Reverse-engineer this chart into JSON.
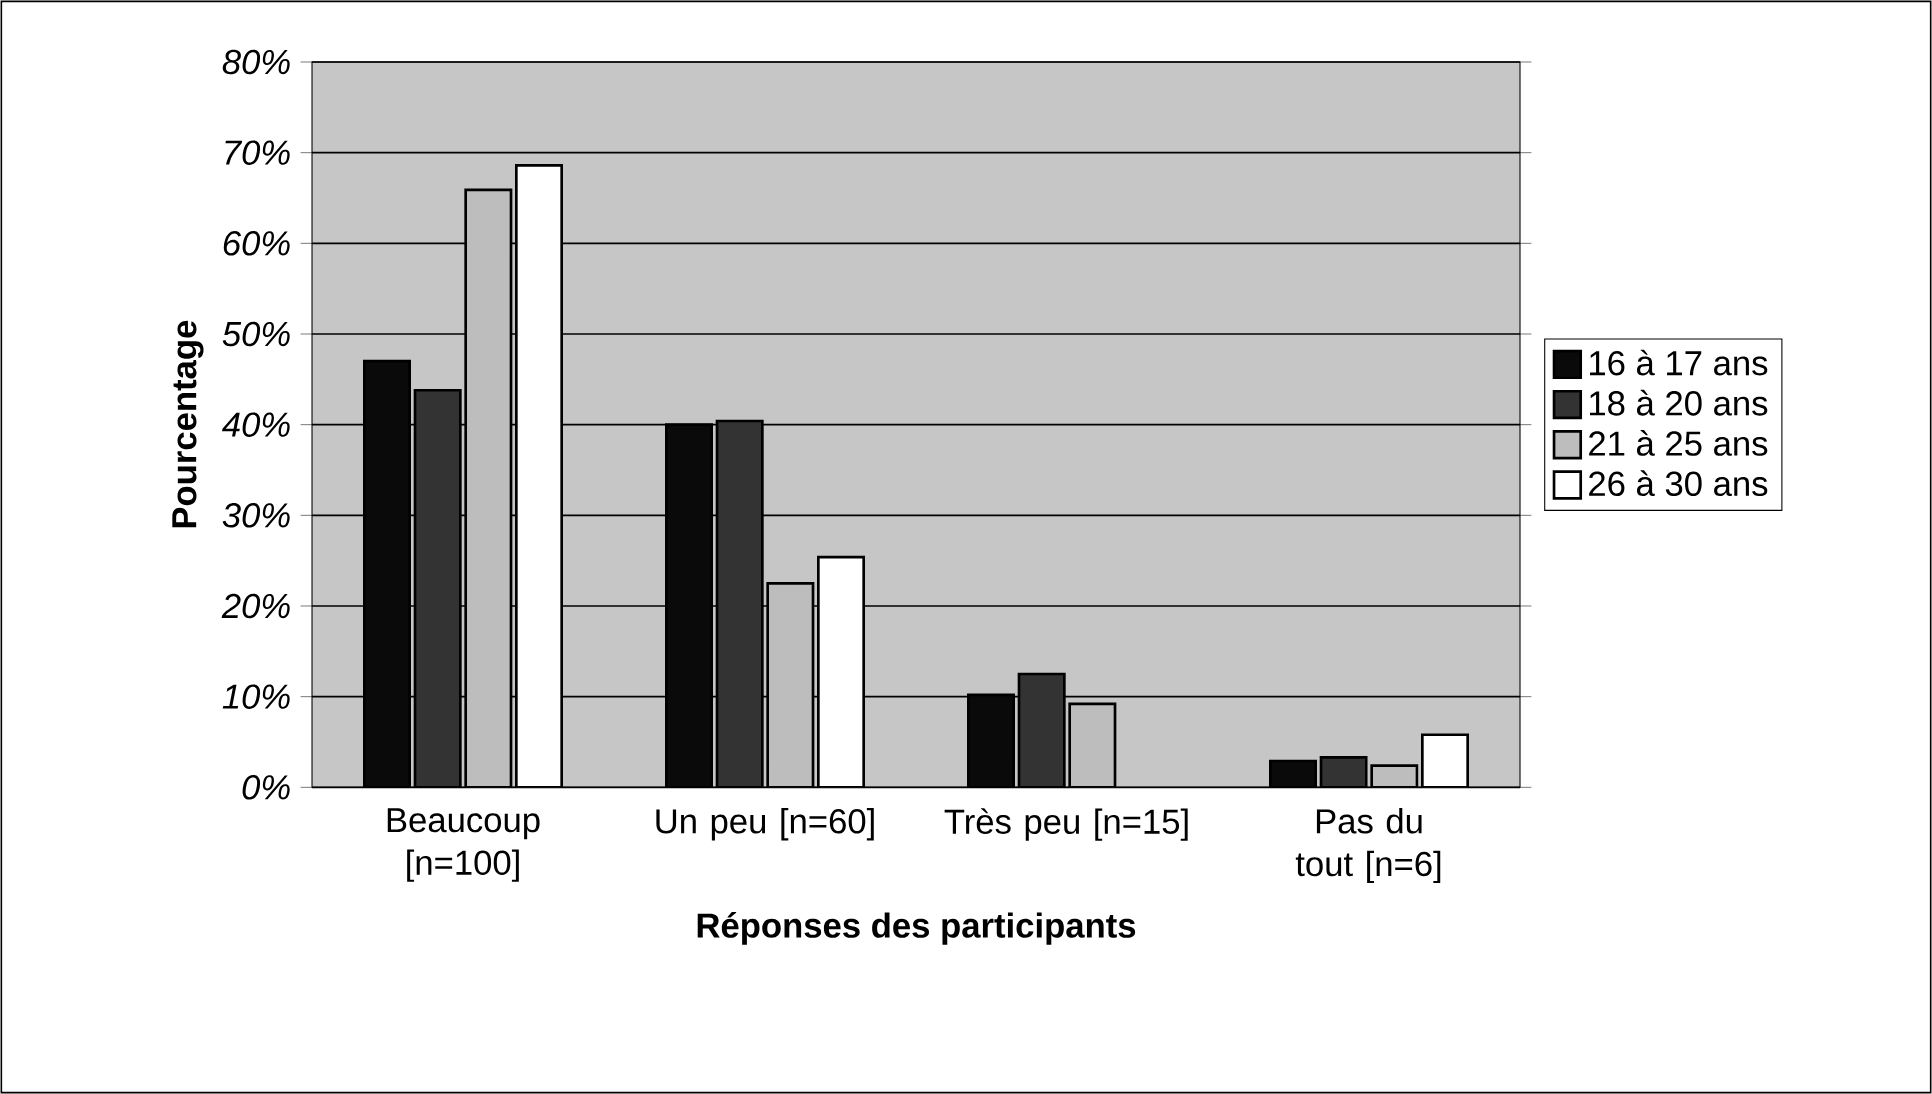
{
  "chart_data": {
    "type": "bar",
    "xlabel": "Réponses des participants",
    "ylabel": "Pourcentage",
    "categories": [
      "Beaucoup [n=100]",
      "Un peu [n=60]",
      "Très peu [n=15]",
      "Pas du tout [n=6]"
    ],
    "series": [
      {
        "name": "16 à 17 ans",
        "color": "#0a0a0a",
        "values": [
          47,
          40,
          10.2,
          2.9
        ]
      },
      {
        "name": "18 à 20 ans",
        "color": "#333333",
        "values": [
          43.8,
          40.4,
          12.5,
          3.3
        ]
      },
      {
        "name": "21 à 25 ans",
        "color": "#bdbdbd",
        "values": [
          65.9,
          22.5,
          9.2,
          2.4
        ]
      },
      {
        "name": "26 à 30 ans",
        "color": "#ffffff",
        "values": [
          68.6,
          25.4,
          null,
          5.8
        ]
      }
    ],
    "ylim": [
      0,
      80
    ],
    "yticks": [
      {
        "value": 0,
        "label": "0%"
      },
      {
        "value": 10,
        "label": "10%"
      },
      {
        "value": 20,
        "label": "20%"
      },
      {
        "value": 30,
        "label": "30%"
      },
      {
        "value": 40,
        "label": "40%"
      },
      {
        "value": 50,
        "label": "50%"
      },
      {
        "value": 60,
        "label": "60%"
      },
      {
        "value": 70,
        "label": "70%"
      },
      {
        "value": 80,
        "label": "80%"
      }
    ],
    "grid": "y",
    "legend": "right"
  }
}
